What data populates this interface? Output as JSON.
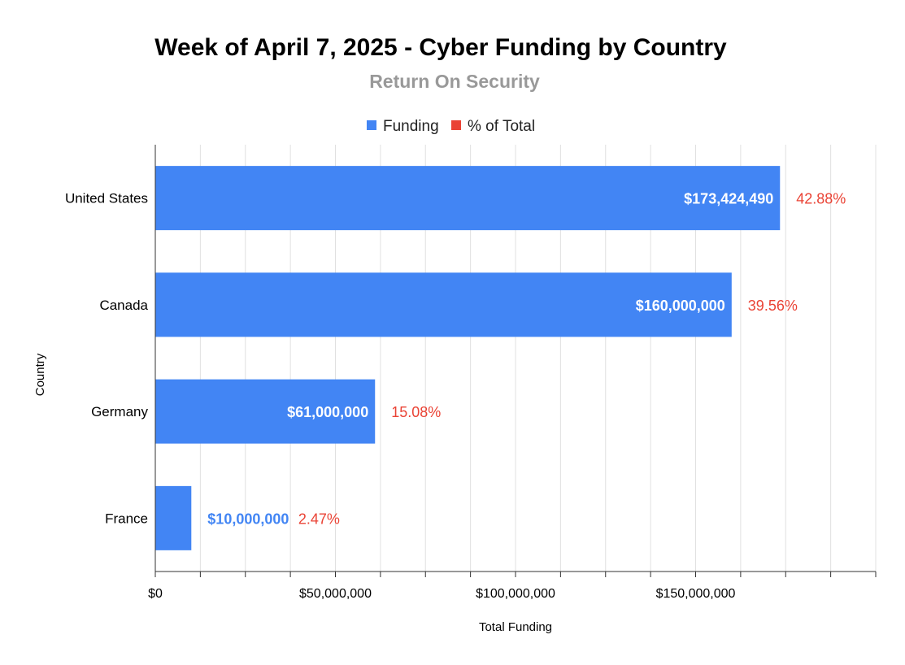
{
  "chart_data": {
    "type": "bar",
    "orientation": "horizontal",
    "title": "Week of April 7, 2025 - Cyber Funding by Country",
    "subtitle": "Return On Security",
    "xlabel": "Total Funding",
    "ylabel": "Country",
    "categories": [
      "United States",
      "Canada",
      "Germany",
      "France"
    ],
    "series": [
      {
        "name": "Funding",
        "color": "#4285f4",
        "values": [
          173424490,
          160000000,
          61000000,
          10000000
        ],
        "labels": [
          "$173,424,490",
          "$160,000,000",
          "$61,000,000",
          "$10,000,000"
        ]
      },
      {
        "name": "% of Total",
        "color": "#ea4335",
        "values": [
          42.88,
          39.56,
          15.08,
          2.47
        ],
        "labels": [
          "42.88%",
          "39.56%",
          "15.08%",
          "2.47%"
        ]
      }
    ],
    "xlim": [
      0,
      200000000
    ],
    "xticks": [
      0,
      50000000,
      100000000,
      150000000
    ],
    "xtick_labels": [
      "$0",
      "$50,000,000",
      "$100,000,000",
      "$150,000,000"
    ],
    "grid": true,
    "legend_position": "top"
  }
}
